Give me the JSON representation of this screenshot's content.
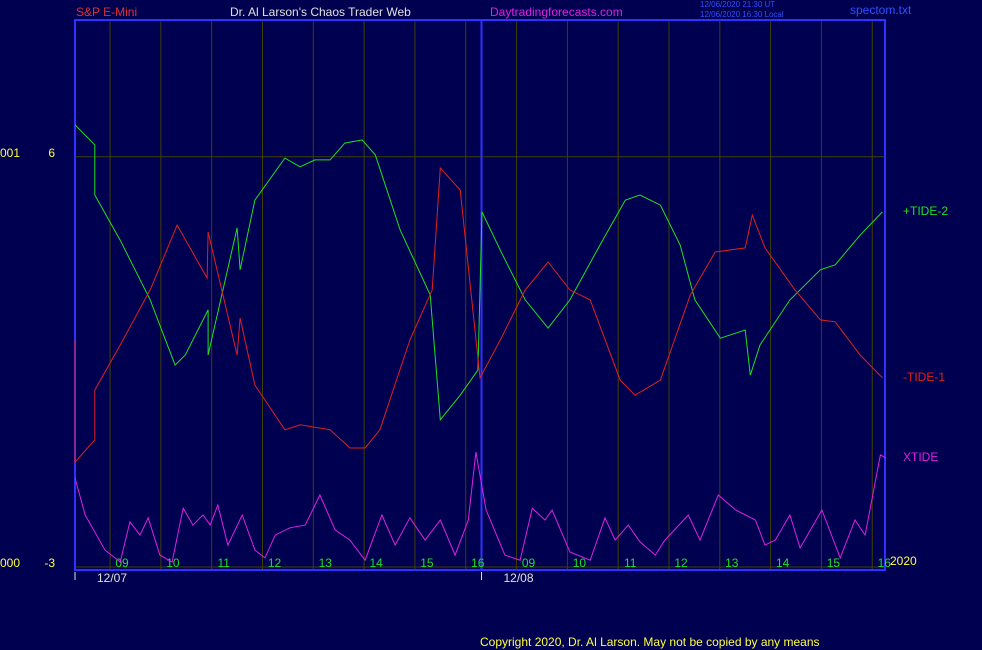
{
  "chart_data": {
    "type": "line",
    "header": {
      "symbol": "S&P E-Mini",
      "site": "Dr. Al Larson's Chaos Trader Web",
      "url": "Daytradingforecasts.com",
      "time_ut": "12/06/2020 21:30 UT",
      "time_local": "12/06/2020 16:30 Local",
      "file": "spectom.txt"
    },
    "copyright": "Copyright 2020, Dr. Al Larson. May not be copied by any means",
    "year_label": "2020",
    "xlim": [
      0,
      16
    ],
    "ylim": [
      -3,
      9
    ],
    "yticks": [
      -3,
      6
    ],
    "y_left_labels": [
      {
        "value": 6,
        "label": "001"
      },
      {
        "value": -3,
        "label": "000"
      }
    ],
    "grid": true,
    "xticks": [
      {
        "value": 0.69,
        "label": "09"
      },
      {
        "value": 1.69,
        "label": "10"
      },
      {
        "value": 2.69,
        "label": "11"
      },
      {
        "value": 3.69,
        "label": "12"
      },
      {
        "value": 4.69,
        "label": "13"
      },
      {
        "value": 5.69,
        "label": "14"
      },
      {
        "value": 6.69,
        "label": "15"
      },
      {
        "value": 7.69,
        "label": "16"
      },
      {
        "value": 8.69,
        "label": "09"
      },
      {
        "value": 9.69,
        "label": "10"
      },
      {
        "value": 10.69,
        "label": "11"
      },
      {
        "value": 11.69,
        "label": "12"
      },
      {
        "value": 12.69,
        "label": "13"
      },
      {
        "value": 13.69,
        "label": "14"
      },
      {
        "value": 14.69,
        "label": "15"
      },
      {
        "value": 15.69,
        "label": "16"
      }
    ],
    "days": [
      {
        "value": 0,
        "label": "12/07"
      },
      {
        "value": 8,
        "label": "12/08"
      }
    ],
    "series": [
      {
        "name": "+TIDE-2",
        "color": "#20e020",
        "x": [
          0,
          0.39,
          0.39,
          0.89,
          1.48,
          1.97,
          2.17,
          2.62,
          2.62,
          3.19,
          3.25,
          3.54,
          4.13,
          4.43,
          4.72,
          5.02,
          5.31,
          5.65,
          5.91,
          6.4,
          6.99,
          7.19,
          7.58,
          7.93,
          7.97,
          8.01,
          8.37,
          8.86,
          9.31,
          9.74,
          10.33,
          10.83,
          11.12,
          11.52,
          11.91,
          12.2,
          12.7,
          13.19,
          13.29,
          13.48,
          14.07,
          14.67,
          14.96,
          15.45,
          15.89
        ],
        "values": [
          6.7,
          6.26,
          5.16,
          4.17,
          2.86,
          1.43,
          1.65,
          2.64,
          1.65,
          4.44,
          3.52,
          5.05,
          5.97,
          5.78,
          5.93,
          5.93,
          6.3,
          6.37,
          6.04,
          4.39,
          2.97,
          0.23,
          0.77,
          1.32,
          3.08,
          4.79,
          3.95,
          2.86,
          2.24,
          2.86,
          4.06,
          5.05,
          5.16,
          4.94,
          4.06,
          2.86,
          2.02,
          2.2,
          1.21,
          1.87,
          2.86,
          3.52,
          3.63,
          4.28,
          4.79
        ]
      },
      {
        "name": "-TIDE-1",
        "color": "#e02020",
        "x": [
          0,
          0,
          0.39,
          0.39,
          0.89,
          1.48,
          2.01,
          2.6,
          2.62,
          3.19,
          3.25,
          3.54,
          4.13,
          4.43,
          5.02,
          5.41,
          5.71,
          6.0,
          6.59,
          7.03,
          7.19,
          7.58,
          7.97,
          8.37,
          8.86,
          9.31,
          9.74,
          10.14,
          10.73,
          11.02,
          11.52,
          12.11,
          12.6,
          13.19,
          13.33,
          13.58,
          14.17,
          14.67,
          14.96,
          15.45,
          15.89
        ],
        "values": [
          1.98,
          -0.7,
          -0.21,
          0.88,
          1.87,
          3.08,
          4.5,
          3.34,
          4.35,
          1.65,
          2.46,
          0.99,
          0.01,
          0.12,
          0.01,
          -0.39,
          -0.39,
          0.01,
          1.98,
          3.08,
          5.75,
          5.27,
          1.15,
          1.98,
          3.08,
          3.69,
          3.08,
          2.86,
          1.1,
          0.77,
          1.1,
          2.97,
          3.91,
          4.0,
          4.72,
          4.0,
          3.08,
          2.42,
          2.38,
          1.65,
          1.15
        ]
      },
      {
        "name": "XTIDE",
        "color": "#e020e0",
        "x": [
          0,
          0.2,
          0.59,
          0.89,
          1.08,
          1.28,
          1.44,
          1.67,
          1.91,
          2.13,
          2.32,
          2.52,
          2.66,
          2.81,
          3.01,
          3.29,
          3.54,
          3.74,
          3.94,
          4.23,
          4.53,
          4.82,
          5.12,
          5.41,
          5.71,
          6.04,
          6.3,
          6.59,
          6.89,
          7.19,
          7.48,
          7.74,
          7.89,
          8.09,
          8.46,
          8.76,
          9.0,
          9.25,
          9.39,
          9.74,
          10.14,
          10.43,
          10.63,
          10.89,
          11.12,
          11.42,
          11.61,
          12.07,
          12.3,
          12.66,
          13.0,
          13.39,
          13.58,
          13.78,
          14.07,
          14.27,
          14.7,
          15.06,
          15.35,
          15.55,
          15.85,
          15.96
        ],
        "values": [
          -1.05,
          -1.86,
          -2.63,
          -2.89,
          -2.01,
          -2.3,
          -1.92,
          -2.74,
          -2.89,
          -1.71,
          -2.08,
          -1.86,
          -2.08,
          -1.64,
          -2.52,
          -1.86,
          -2.63,
          -2.8,
          -2.3,
          -2.14,
          -2.08,
          -1.42,
          -2.19,
          -2.41,
          -2.85,
          -1.86,
          -2.52,
          -1.92,
          -2.41,
          -1.97,
          -2.74,
          -1.97,
          -0.48,
          -1.75,
          -2.74,
          -2.85,
          -1.71,
          -1.97,
          -1.75,
          -2.67,
          -2.85,
          -1.92,
          -2.41,
          -2.08,
          -2.45,
          -2.74,
          -2.41,
          -1.86,
          -2.41,
          -1.42,
          -1.75,
          -1.97,
          -2.52,
          -2.41,
          -1.86,
          -2.58,
          -1.75,
          -2.8,
          -1.97,
          -2.3,
          -0.54,
          -0.61
        ]
      }
    ]
  }
}
